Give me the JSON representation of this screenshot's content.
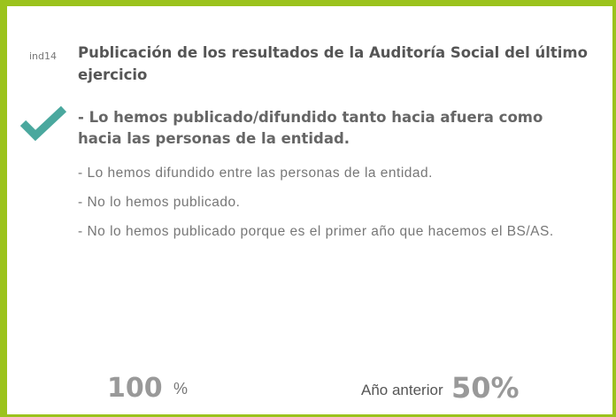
{
  "indicator": {
    "code": "ind14",
    "title": "Publicación de los resultados de la Auditoría Social del último ejercicio",
    "selected_option": "- Lo hemos publicado/difundido tanto hacia afuera como hacia las personas de la entidad.",
    "options": [
      "- Lo hemos difundido entre las personas de la entidad.",
      "- No lo hemos publicado.",
      "- No lo hemos publicado porque es el primer año que hacemos el BS/AS."
    ],
    "score": "100",
    "score_unit": "%",
    "previous_label": "Año anterior",
    "previous_score": "50%"
  }
}
